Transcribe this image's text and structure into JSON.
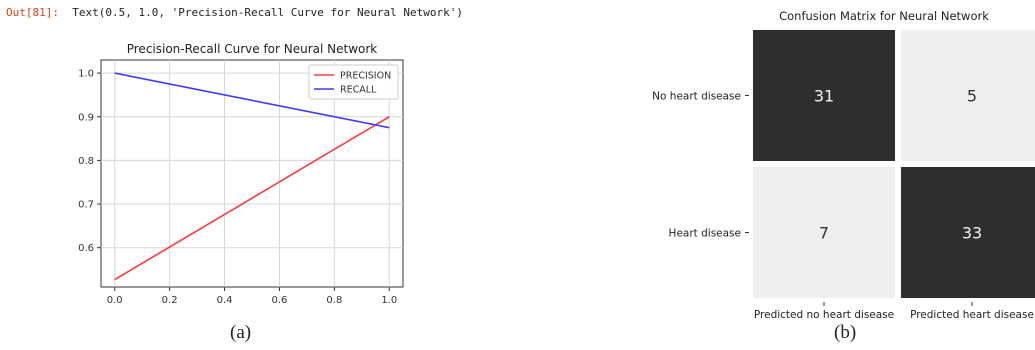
{
  "output_cell": {
    "prompt": "Out[81]:",
    "text": "Text(0.5, 1.0, 'Precision-Recall Curve for Neural Network')"
  },
  "captions": {
    "left": "(a)",
    "right": "(b)"
  },
  "colors": {
    "precision": "#ff3b3b",
    "recall": "#3b3bff",
    "dark_cell": "#2e2e2e",
    "light_cell": "#efefef"
  },
  "chart_data": [
    {
      "type": "line",
      "title": "Precision-Recall Curve for Neural Network",
      "xlabel": "",
      "ylabel": "",
      "xlim": [
        -0.05,
        1.05
      ],
      "ylim": [
        0.51,
        1.03
      ],
      "xticks": [
        "0.0",
        "0.2",
        "0.4",
        "0.6",
        "0.8",
        "1.0"
      ],
      "yticks": [
        "0.6",
        "0.7",
        "0.8",
        "0.9",
        "1.0"
      ],
      "grid": true,
      "legend": "top-right",
      "series": [
        {
          "name": "PRECISION",
          "x": [
            0,
            1
          ],
          "y": [
            0.527,
            0.9
          ]
        },
        {
          "name": "RECALL",
          "x": [
            0,
            1
          ],
          "y": [
            1.0,
            0.875
          ]
        }
      ]
    },
    {
      "type": "heatmap",
      "title": "Confusion Matrix for Neural Network",
      "row_labels": [
        "No heart disease",
        "Heart disease"
      ],
      "col_labels": [
        "Predicted no heart disease",
        "Predicted heart disease"
      ],
      "values": [
        [
          31,
          5
        ],
        [
          7,
          33
        ]
      ]
    }
  ]
}
